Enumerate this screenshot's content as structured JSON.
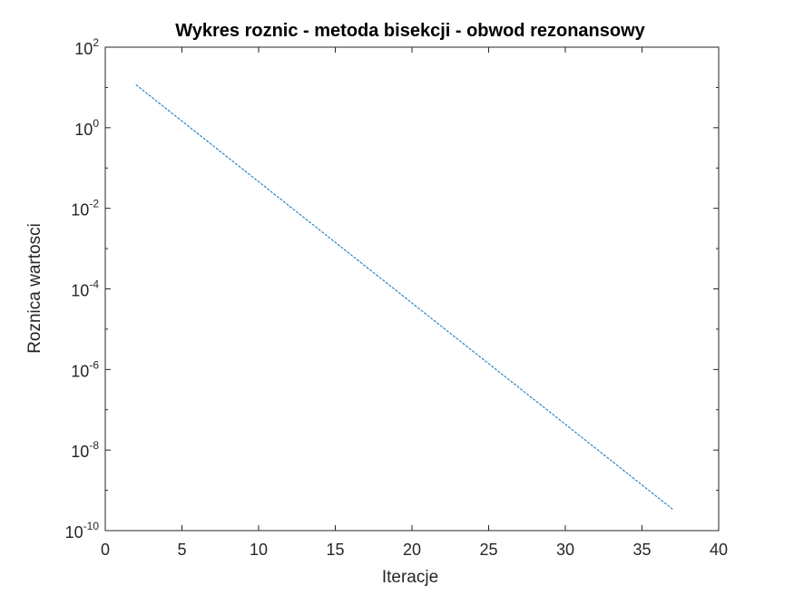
{
  "chart_data": {
    "type": "line",
    "title": "Wykres roznic - metoda bisekcji - obwod rezonansowy",
    "xlabel": "Iteracje",
    "ylabel": "Roznica wartosci",
    "xlim": [
      0,
      40
    ],
    "ylim": [
      1e-10,
      100
    ],
    "yscale": "log",
    "grid": false,
    "xticks": [
      0,
      5,
      10,
      15,
      20,
      25,
      30,
      35,
      40
    ],
    "xtick_labels": [
      "0",
      "5",
      "10",
      "15",
      "20",
      "25",
      "30",
      "35",
      "40"
    ],
    "yticks": [
      1e-10,
      1e-08,
      1e-06,
      0.0001,
      0.01,
      1,
      100
    ],
    "ytick_labels": [
      {
        "base": "10",
        "exp": "-10"
      },
      {
        "base": "10",
        "exp": "-8"
      },
      {
        "base": "10",
        "exp": "-6"
      },
      {
        "base": "10",
        "exp": "-4"
      },
      {
        "base": "10",
        "exp": "-2"
      },
      {
        "base": "10",
        "exp": "0"
      },
      {
        "base": "10",
        "exp": "2"
      }
    ],
    "series": [
      {
        "color": "#0072BD",
        "x": [
          2,
          37
        ],
        "y": [
          11.7,
          3.4e-10
        ]
      }
    ]
  }
}
